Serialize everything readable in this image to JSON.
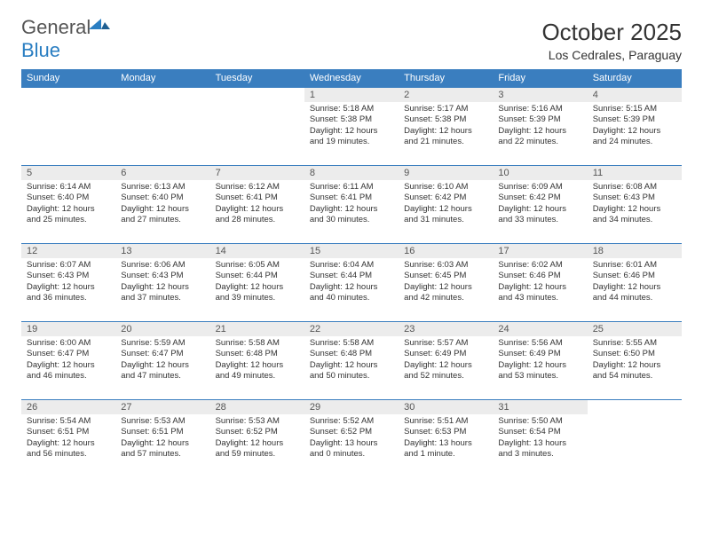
{
  "logo": {
    "part1": "General",
    "part2": "Blue"
  },
  "title": "October 2025",
  "subtitle": "Los Cedrales, Paraguay",
  "colors": {
    "header_bg": "#3a7ebf",
    "header_text": "#ffffff",
    "daynum_bg": "#ececec",
    "row_border": "#3a7ebf",
    "logo_gray": "#555555",
    "logo_blue": "#2a7ec2"
  },
  "day_headers": [
    "Sunday",
    "Monday",
    "Tuesday",
    "Wednesday",
    "Thursday",
    "Friday",
    "Saturday"
  ],
  "weeks": [
    [
      null,
      null,
      null,
      {
        "n": "1",
        "sr": "5:18 AM",
        "ss": "5:38 PM",
        "dl": "12 hours and 19 minutes."
      },
      {
        "n": "2",
        "sr": "5:17 AM",
        "ss": "5:38 PM",
        "dl": "12 hours and 21 minutes."
      },
      {
        "n": "3",
        "sr": "5:16 AM",
        "ss": "5:39 PM",
        "dl": "12 hours and 22 minutes."
      },
      {
        "n": "4",
        "sr": "5:15 AM",
        "ss": "5:39 PM",
        "dl": "12 hours and 24 minutes."
      }
    ],
    [
      {
        "n": "5",
        "sr": "6:14 AM",
        "ss": "6:40 PM",
        "dl": "12 hours and 25 minutes."
      },
      {
        "n": "6",
        "sr": "6:13 AM",
        "ss": "6:40 PM",
        "dl": "12 hours and 27 minutes."
      },
      {
        "n": "7",
        "sr": "6:12 AM",
        "ss": "6:41 PM",
        "dl": "12 hours and 28 minutes."
      },
      {
        "n": "8",
        "sr": "6:11 AM",
        "ss": "6:41 PM",
        "dl": "12 hours and 30 minutes."
      },
      {
        "n": "9",
        "sr": "6:10 AM",
        "ss": "6:42 PM",
        "dl": "12 hours and 31 minutes."
      },
      {
        "n": "10",
        "sr": "6:09 AM",
        "ss": "6:42 PM",
        "dl": "12 hours and 33 minutes."
      },
      {
        "n": "11",
        "sr": "6:08 AM",
        "ss": "6:43 PM",
        "dl": "12 hours and 34 minutes."
      }
    ],
    [
      {
        "n": "12",
        "sr": "6:07 AM",
        "ss": "6:43 PM",
        "dl": "12 hours and 36 minutes."
      },
      {
        "n": "13",
        "sr": "6:06 AM",
        "ss": "6:43 PM",
        "dl": "12 hours and 37 minutes."
      },
      {
        "n": "14",
        "sr": "6:05 AM",
        "ss": "6:44 PM",
        "dl": "12 hours and 39 minutes."
      },
      {
        "n": "15",
        "sr": "6:04 AM",
        "ss": "6:44 PM",
        "dl": "12 hours and 40 minutes."
      },
      {
        "n": "16",
        "sr": "6:03 AM",
        "ss": "6:45 PM",
        "dl": "12 hours and 42 minutes."
      },
      {
        "n": "17",
        "sr": "6:02 AM",
        "ss": "6:46 PM",
        "dl": "12 hours and 43 minutes."
      },
      {
        "n": "18",
        "sr": "6:01 AM",
        "ss": "6:46 PM",
        "dl": "12 hours and 44 minutes."
      }
    ],
    [
      {
        "n": "19",
        "sr": "6:00 AM",
        "ss": "6:47 PM",
        "dl": "12 hours and 46 minutes."
      },
      {
        "n": "20",
        "sr": "5:59 AM",
        "ss": "6:47 PM",
        "dl": "12 hours and 47 minutes."
      },
      {
        "n": "21",
        "sr": "5:58 AM",
        "ss": "6:48 PM",
        "dl": "12 hours and 49 minutes."
      },
      {
        "n": "22",
        "sr": "5:58 AM",
        "ss": "6:48 PM",
        "dl": "12 hours and 50 minutes."
      },
      {
        "n": "23",
        "sr": "5:57 AM",
        "ss": "6:49 PM",
        "dl": "12 hours and 52 minutes."
      },
      {
        "n": "24",
        "sr": "5:56 AM",
        "ss": "6:49 PM",
        "dl": "12 hours and 53 minutes."
      },
      {
        "n": "25",
        "sr": "5:55 AM",
        "ss": "6:50 PM",
        "dl": "12 hours and 54 minutes."
      }
    ],
    [
      {
        "n": "26",
        "sr": "5:54 AM",
        "ss": "6:51 PM",
        "dl": "12 hours and 56 minutes."
      },
      {
        "n": "27",
        "sr": "5:53 AM",
        "ss": "6:51 PM",
        "dl": "12 hours and 57 minutes."
      },
      {
        "n": "28",
        "sr": "5:53 AM",
        "ss": "6:52 PM",
        "dl": "12 hours and 59 minutes."
      },
      {
        "n": "29",
        "sr": "5:52 AM",
        "ss": "6:52 PM",
        "dl": "13 hours and 0 minutes."
      },
      {
        "n": "30",
        "sr": "5:51 AM",
        "ss": "6:53 PM",
        "dl": "13 hours and 1 minute."
      },
      {
        "n": "31",
        "sr": "5:50 AM",
        "ss": "6:54 PM",
        "dl": "13 hours and 3 minutes."
      },
      null
    ]
  ],
  "labels": {
    "sunrise": "Sunrise:",
    "sunset": "Sunset:",
    "daylight": "Daylight:"
  }
}
